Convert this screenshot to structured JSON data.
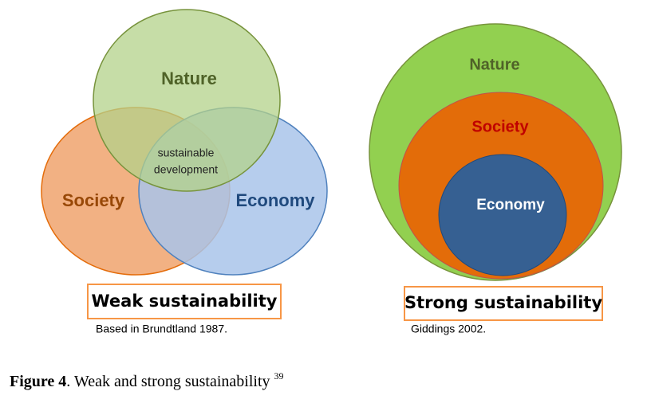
{
  "weak": {
    "nature": "Nature",
    "society": "Society",
    "economy": "Economy",
    "center": [
      "sustainable",
      "development"
    ],
    "title": "Weak sustainability",
    "source": "Based in Brundtland 1987."
  },
  "strong": {
    "nature": "Nature",
    "society": "Society",
    "economy": "Economy",
    "title": "Strong sustainability",
    "source": "Giddings 2002."
  },
  "caption": {
    "label": "Figure 4",
    "text": ". Weak and strong sustainability ",
    "note": "39"
  }
}
